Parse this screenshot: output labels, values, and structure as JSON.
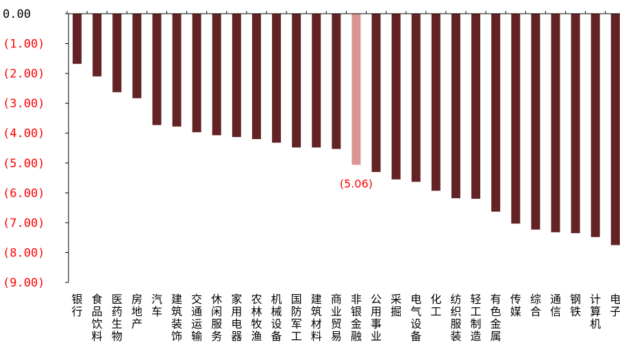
{
  "chart_data": {
    "type": "bar",
    "title": "",
    "xlabel": "",
    "ylabel": "",
    "ylim": [
      -9,
      0
    ],
    "yticks": [
      0,
      -1,
      -2,
      -3,
      -4,
      -5,
      -6,
      -7,
      -8,
      -9
    ],
    "ytick_labels": [
      "0.00",
      "(1.00)",
      "(2.00)",
      "(3.00)",
      "(4.00)",
      "(5.00)",
      "(6.00)",
      "(7.00)",
      "(8.00)",
      "(9.00)"
    ],
    "categories": [
      "银行",
      "食品饮料",
      "医药生物",
      "房地产",
      "汽车",
      "建筑装饰",
      "交通运输",
      "休闲服务",
      "家用电器",
      "农林牧渔",
      "机械设备",
      "国防军工",
      "建筑材料",
      "商业贸易",
      "非银金融",
      "公用事业",
      "采掘",
      "电气设备",
      "化工",
      "纺织服装",
      "轻工制造",
      "有色金属",
      "传媒",
      "综合",
      "通信",
      "钢铁",
      "计算机",
      "电子"
    ],
    "values": [
      -1.68,
      -2.1,
      -2.63,
      -2.83,
      -3.73,
      -3.78,
      -3.97,
      -4.07,
      -4.13,
      -4.2,
      -4.32,
      -4.48,
      -4.48,
      -4.53,
      -5.06,
      -5.3,
      -5.55,
      -5.63,
      -5.93,
      -6.18,
      -6.2,
      -6.63,
      -7.03,
      -7.23,
      -7.32,
      -7.35,
      -7.48,
      -7.75
    ],
    "highlight_index": 14,
    "data_labels": [
      {
        "index": 14,
        "text": "(5.06)"
      }
    ],
    "colors": {
      "bar": "#632325",
      "highlight": "#d99694",
      "label": "#ff0000",
      "zero_tick": "#000000",
      "neg_tick": "#ff0000",
      "axis": "#000000"
    }
  }
}
